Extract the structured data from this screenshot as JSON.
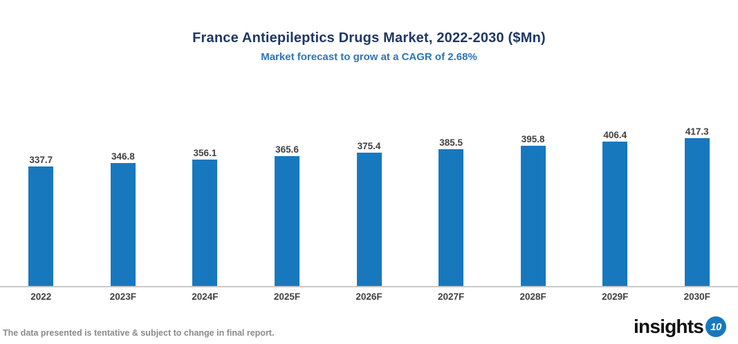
{
  "chart_data": {
    "type": "bar",
    "title": "France Antiepileptics Drugs Market, 2022-2030 ($Mn)",
    "subtitle": "Market forecast to grow at a CAGR of 2.68%",
    "categories": [
      "2022",
      "2023F",
      "2024F",
      "2025F",
      "2026F",
      "2027F",
      "2028F",
      "2029F",
      "2030F"
    ],
    "values": [
      337.7,
      346.8,
      356.1,
      365.6,
      375.4,
      385.5,
      395.8,
      406.4,
      417.3
    ],
    "xlabel": "",
    "ylabel": "",
    "ylim": [
      0,
      510
    ],
    "grid": false,
    "legend": false,
    "data_labels": true
  },
  "colors": {
    "bar": "#1878BE",
    "title": "#1F3864",
    "subtitle": "#2E75B6",
    "value_label": "#404040",
    "tick_label": "#404040",
    "axis_line": "#C9C9C9",
    "footer_note": "#8A8A8A",
    "logo_text": "#111111",
    "logo_badge_bg": "#1878BE",
    "logo_badge_text": "#FFFFFF"
  },
  "footer": {
    "note": "The data presented is tentative & subject to change in final report."
  },
  "logo": {
    "text": "insights",
    "badge": "10"
  }
}
